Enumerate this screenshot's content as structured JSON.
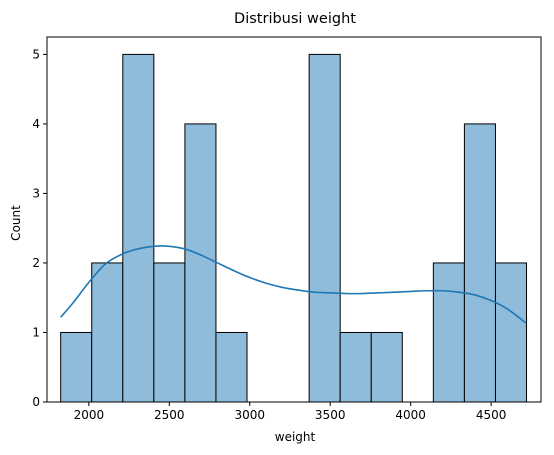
{
  "chart_data": {
    "type": "bar",
    "subtype": "histogram",
    "title": "Distribusi weight",
    "xlabel": "weight",
    "ylabel": "Count",
    "xlim": [
      1740,
      4810
    ],
    "ylim": [
      0,
      5.25
    ],
    "x_ticks": [
      2000,
      2500,
      3000,
      3500,
      4000,
      4500
    ],
    "y_ticks": [
      0,
      1,
      2,
      3,
      4,
      5
    ],
    "grid": false,
    "legend": "none",
    "bins": [
      {
        "x0": 1825,
        "x1": 2018,
        "count": 1
      },
      {
        "x0": 2018,
        "x1": 2211,
        "count": 2
      },
      {
        "x0": 2211,
        "x1": 2404,
        "count": 5
      },
      {
        "x0": 2404,
        "x1": 2597,
        "count": 2
      },
      {
        "x0": 2597,
        "x1": 2790,
        "count": 4
      },
      {
        "x0": 2790,
        "x1": 2983,
        "count": 1
      },
      {
        "x0": 2983,
        "x1": 3176,
        "count": 0
      },
      {
        "x0": 3176,
        "x1": 3369,
        "count": 0
      },
      {
        "x0": 3369,
        "x1": 3562,
        "count": 5
      },
      {
        "x0": 3562,
        "x1": 3755,
        "count": 1
      },
      {
        "x0": 3755,
        "x1": 3948,
        "count": 1
      },
      {
        "x0": 3948,
        "x1": 4141,
        "count": 0
      },
      {
        "x0": 4141,
        "x1": 4334,
        "count": 2
      },
      {
        "x0": 4334,
        "x1": 4527,
        "count": 4
      },
      {
        "x0": 4527,
        "x1": 4720,
        "count": 2
      }
    ],
    "kde": {
      "x": [
        1825,
        1900,
        2000,
        2100,
        2200,
        2300,
        2400,
        2500,
        2600,
        2700,
        2800,
        2900,
        3000,
        3100,
        3200,
        3300,
        3400,
        3500,
        3600,
        3700,
        3800,
        3900,
        4000,
        4100,
        4200,
        4300,
        4400,
        4500,
        4600,
        4720
      ],
      "y": [
        1.22,
        1.42,
        1.72,
        1.98,
        2.12,
        2.2,
        2.24,
        2.24,
        2.2,
        2.11,
        2.0,
        1.89,
        1.79,
        1.71,
        1.65,
        1.61,
        1.58,
        1.57,
        1.56,
        1.56,
        1.57,
        1.58,
        1.59,
        1.6,
        1.6,
        1.58,
        1.54,
        1.46,
        1.34,
        1.13
      ]
    },
    "colors": {
      "bar_fill": "#8fbcdb",
      "bar_edge": "#000000",
      "kde_line": "#1f77b4",
      "axes": "#000000"
    }
  }
}
